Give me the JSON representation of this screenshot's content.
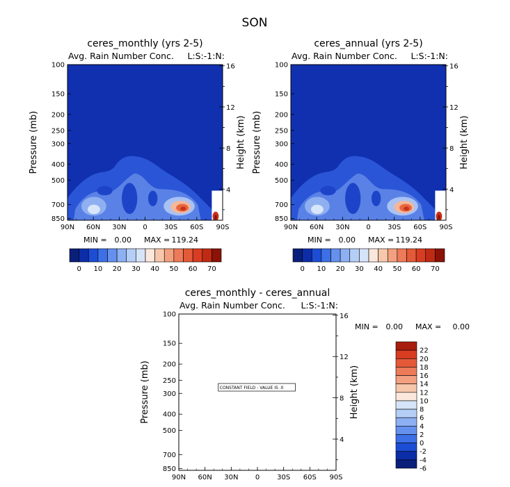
{
  "page_title": "SON",
  "colors": {
    "field_background": "#1030b0",
    "constant_panel": "#ffffff",
    "colorbar_top": [
      "#0a1f7a",
      "#0d2da8",
      "#1d4dd5",
      "#3d6fe6",
      "#6590ee",
      "#8db0f2",
      "#b5cef6",
      "#d6e4f9",
      "#fbe7dc",
      "#f7c7ab",
      "#f2a07f",
      "#ed7a58",
      "#e45a38",
      "#d83d22",
      "#bf2a14",
      "#8a1206"
    ],
    "colorbar_diff": [
      "#0a1f7a",
      "#0d2da8",
      "#1d4dd5",
      "#3d6fe6",
      "#6590ee",
      "#8db0f2",
      "#b5cef6",
      "#d6e4f9",
      "#fbe7dc",
      "#f7c7ab",
      "#f2a07f",
      "#ed7a58",
      "#e45a38",
      "#d83d22",
      "#a81d0d"
    ]
  },
  "chart_data": [
    {
      "type": "heatmap",
      "title": "ceres_monthly (yrs 2-5)",
      "subtitle": "Avg. Rain Number Conc.",
      "right_label": "L:S:-1:N:",
      "ylabel": "Pressure (mb)",
      "ylabel_right": "Height (km)",
      "x_ticks": [
        "90N",
        "60N",
        "30N",
        "0",
        "30S",
        "60S",
        "90S"
      ],
      "y_ticks": [
        100,
        150,
        200,
        250,
        300,
        400,
        500,
        700,
        850
      ],
      "y_right_ticks": [
        16,
        12,
        8,
        4
      ],
      "stats": {
        "min_label": "MIN =",
        "min": "0.00",
        "max_label": "MAX =",
        "max": "119.24"
      },
      "colorbar_labels": [
        "0",
        "10",
        "20",
        "30",
        "40",
        "50",
        "60",
        "70"
      ]
    },
    {
      "type": "heatmap",
      "title": "ceres_annual (yrs 2-5)",
      "subtitle": "Avg. Rain Number Conc.",
      "right_label": "L:S:-1:N:",
      "ylabel": "Pressure (mb)",
      "ylabel_right": "Height (km)",
      "x_ticks": [
        "90N",
        "60N",
        "30N",
        "0",
        "30S",
        "60S",
        "90S"
      ],
      "y_ticks": [
        100,
        150,
        200,
        250,
        300,
        400,
        500,
        700,
        850
      ],
      "y_right_ticks": [
        16,
        12,
        8,
        4
      ],
      "stats": {
        "min_label": "MIN =",
        "min": "0.00",
        "max_label": "MAX =",
        "max": "119.24"
      },
      "colorbar_labels": [
        "0",
        "10",
        "20",
        "30",
        "40",
        "50",
        "60",
        "70"
      ]
    },
    {
      "type": "heatmap",
      "title": "ceres_monthly - ceres_annual",
      "subtitle": "Avg. Rain Number Conc.",
      "right_label": "L:S:-1:N:",
      "ylabel": "Pressure (mb)",
      "ylabel_right": "Height (km)",
      "x_ticks": [
        "90N",
        "60N",
        "30N",
        "0",
        "30S",
        "60S",
        "90S"
      ],
      "y_ticks": [
        100,
        150,
        200,
        250,
        300,
        400,
        500,
        700,
        850
      ],
      "y_right_ticks": [
        16,
        12,
        8,
        4
      ],
      "stats": {
        "min_label": "MIN =",
        "min": "0.00",
        "max_label": "MAX =",
        "max": "0.00"
      },
      "annotation": "CONSTANT FIELD - VALUE IS .0",
      "colorbar_labels": [
        "22",
        "20",
        "18",
        "16",
        "14",
        "12",
        "10",
        "8",
        "6",
        "4",
        "2",
        "0",
        "-2",
        "-4",
        "-6"
      ]
    }
  ]
}
